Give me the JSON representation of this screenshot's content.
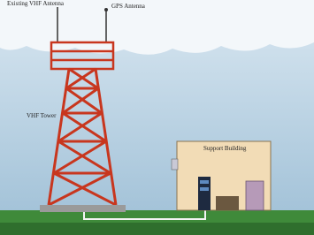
{
  "labels": {
    "vhf_antenna": "Existing VHF Antenna",
    "gps_antenna": "GPS Antenna",
    "tower": "VHF Tower",
    "building": "Support Building"
  }
}
